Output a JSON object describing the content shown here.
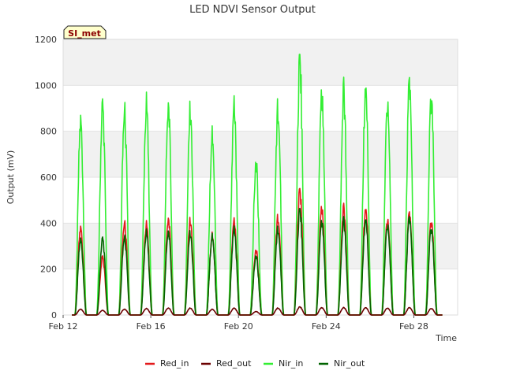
{
  "chart_data": {
    "type": "line",
    "title": "LED NDVI Sensor Output",
    "xlabel": "Time",
    "ylabel": "Output (mV)",
    "ylim": [
      0,
      1200
    ],
    "yticks": [
      0,
      200,
      400,
      600,
      800,
      1000,
      1200
    ],
    "xlim": [
      12.0,
      30.0
    ],
    "xticks": [
      {
        "value": 12,
        "label": "Feb 12"
      },
      {
        "value": 16,
        "label": "Feb 16"
      },
      {
        "value": 20,
        "label": "Feb 20"
      },
      {
        "value": 24,
        "label": "Feb 24"
      },
      {
        "value": 28,
        "label": "Feb 28"
      }
    ],
    "site_label": "SI_met",
    "legend_position": "bottom-center",
    "day_peaks": {
      "days": [
        12.8,
        13.8,
        14.8,
        15.8,
        16.8,
        17.8,
        18.8,
        19.8,
        20.8,
        21.8,
        22.8,
        23.8,
        24.8,
        25.8,
        26.8,
        27.8,
        28.8
      ],
      "Nir_in": [
        835,
        905,
        875,
        905,
        905,
        885,
        790,
        915,
        655,
        900,
        1105,
        970,
        975,
        985,
        935,
        1005,
        940
      ],
      "Red_in": [
        375,
        250,
        395,
        390,
        415,
        410,
        350,
        410,
        280,
        425,
        540,
        470,
        465,
        460,
        420,
        440,
        405
      ],
      "Nir_out": [
        325,
        330,
        335,
        355,
        360,
        355,
        345,
        375,
        255,
        375,
        455,
        410,
        410,
        415,
        395,
        420,
        375
      ],
      "Red_out": [
        25,
        20,
        25,
        28,
        30,
        30,
        25,
        30,
        15,
        30,
        35,
        32,
        32,
        32,
        30,
        32,
        28
      ]
    },
    "series": [
      {
        "name": "Red_in",
        "color": "#e31a1c"
      },
      {
        "name": "Red_out",
        "color": "#6b0000"
      },
      {
        "name": "Nir_in",
        "color": "#33ee33"
      },
      {
        "name": "Nir_out",
        "color": "#006400"
      }
    ]
  }
}
